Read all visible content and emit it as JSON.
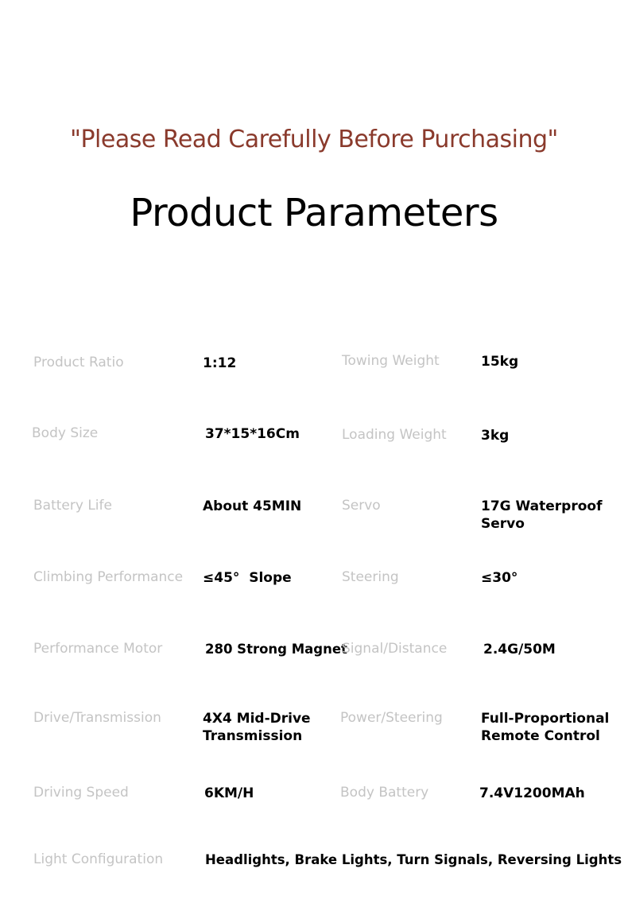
{
  "notice": "\"Please Read Carefully Before Purchasing\"",
  "title": "Product Parameters",
  "rows": [
    {
      "left_label": "Product Ratio",
      "left_value": "1:12",
      "right_label": "Towing Weight",
      "right_value": "15kg"
    },
    {
      "left_label": "Body Size",
      "left_value": "37*15*16Cm",
      "right_label": "Loading Weight",
      "right_value": "3kg"
    },
    {
      "left_label": "Battery Life",
      "left_value": "About 45MIN",
      "right_label": "Servo",
      "right_value": "17G Waterproof\n Servo"
    },
    {
      "left_label": "Climbing Performance",
      "left_value": "≤45°  Slope",
      "right_label": "Steering",
      "right_value": "≤30°"
    },
    {
      "left_label": "Performance Motor",
      "left_value": "280 Strong Magnet",
      "right_label": "Signal/Distance",
      "right_value": "2.4G/50M"
    },
    {
      "left_label": "Drive/Transmission",
      "left_value": "4X4 Mid-Drive\nTransmission",
      "right_label": "Power/Steering",
      "right_value": "Full-Proportional\nRemote Control"
    },
    {
      "left_label": "Driving Speed",
      "left_value": "6KM/H",
      "right_label": "Body Battery",
      "right_value": "7.4V1200MAh"
    },
    {
      "left_label": "Light Configuration",
      "left_value": "Headlights, Brake Lights, Turn Signals, Reversing Lights"
    }
  ],
  "colors": {
    "notice": "#8a3a2c",
    "label": "#c4c4c4",
    "value": "#000000"
  }
}
